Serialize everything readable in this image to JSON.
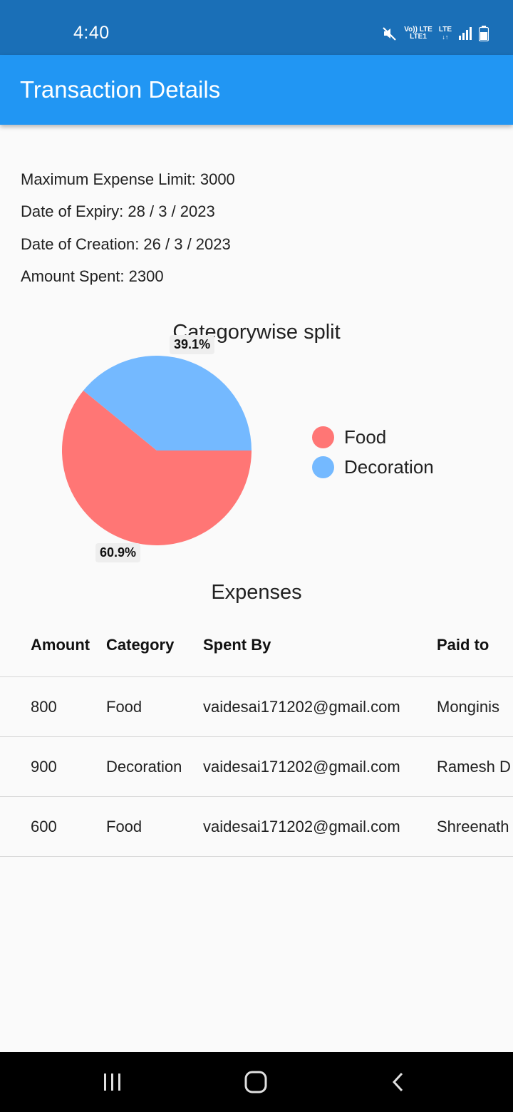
{
  "status_bar": {
    "time": "4:40",
    "net_top": "Vo)) LTE",
    "net_bottom": "LTE1",
    "lte_label": "LTE",
    "icons": [
      "mute-icon",
      "signal-icon",
      "battery-icon"
    ]
  },
  "app_bar": {
    "title": "Transaction Details",
    "color": "#2196f3"
  },
  "info": {
    "max_limit": "Maximum Expense Limit: 3000",
    "expiry": "Date of Expiry: 28 / 3 / 2023",
    "creation": "Date of Creation: 26 / 3 / 2023",
    "spent": "Amount Spent: 2300"
  },
  "chart_data": {
    "type": "pie",
    "title": "Categorywise split",
    "categories": [
      "Food",
      "Decoration"
    ],
    "values": [
      60.9,
      39.1
    ],
    "labels": [
      "60.9%",
      "39.1%"
    ],
    "colors": [
      "#ff7675",
      "#74b9ff"
    ],
    "legend": "right"
  },
  "expenses": {
    "title": "Expenses",
    "columns": [
      "Amount",
      "Category",
      "Spent By",
      "Paid to"
    ],
    "rows": [
      [
        "800",
        "Food",
        "vaidesai171202@gmail.com",
        "Monginis"
      ],
      [
        "900",
        "Decoration",
        "vaidesai171202@gmail.com",
        "Ramesh D"
      ],
      [
        "600",
        "Food",
        "vaidesai171202@gmail.com",
        "Shreenath"
      ]
    ]
  },
  "nav_bar": {
    "icons": [
      "recent-apps-icon",
      "home-icon",
      "back-icon"
    ]
  }
}
